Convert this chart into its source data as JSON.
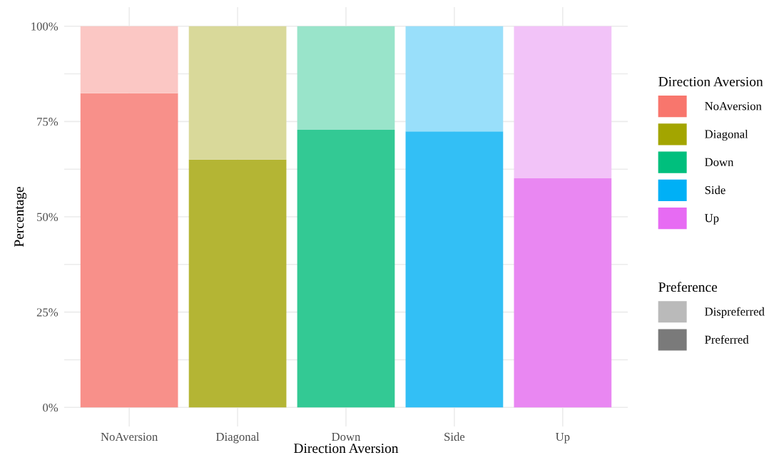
{
  "chart_data": {
    "type": "bar",
    "stacked": true,
    "xlabel": "Direction Aversion",
    "ylabel": "Percentage",
    "legend_title": [
      "Direction Aversion",
      "Preference"
    ],
    "legend": "right",
    "categories": [
      "NoAversion",
      "Diagonal",
      "Down",
      "Side",
      "Up"
    ],
    "colors": [
      "#f8766d",
      "#a3a500",
      "#00bf7d",
      "#00b0f6",
      "#e76bf3"
    ],
    "series": [
      {
        "name": "Preferred",
        "color": "#7a7a7a",
        "colors": [
          "#f8908a",
          "#b4b534",
          "#33c994",
          "#33bff5",
          "#e987f2"
        ],
        "values": [
          82.4,
          65.0,
          72.8,
          72.4,
          60.1
        ]
      },
      {
        "name": "Dispreferred",
        "color": "#bababa",
        "colors": [
          "#fbc7c4",
          "#d9d99a",
          "#99e4ca",
          "#99dffa",
          "#f2c3f8"
        ],
        "values": [
          17.6,
          35.0,
          27.2,
          27.6,
          39.9
        ]
      }
    ],
    "ylim": [
      -5,
      105
    ],
    "yticks": [
      {
        "value": 0,
        "label": "0%"
      },
      {
        "value": 12.5,
        "label": null
      },
      {
        "value": 25,
        "label": "25%"
      },
      {
        "value": 37.5,
        "label": null
      },
      {
        "value": 50,
        "label": "50%"
      },
      {
        "value": 62.5,
        "label": null
      },
      {
        "value": 75,
        "label": "75%"
      },
      {
        "value": 87.5,
        "label": null
      },
      {
        "value": 100,
        "label": "100%"
      }
    ],
    "grid": true
  }
}
